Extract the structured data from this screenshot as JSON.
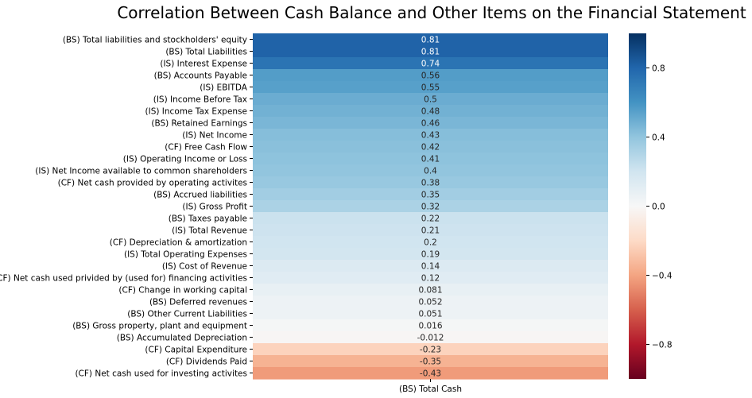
{
  "chart_data": {
    "type": "heatmap",
    "title": "Correlation Between Cash Balance and Other Items on the Financial Statement",
    "columns": [
      "(BS) Total Cash"
    ],
    "rows": [
      {
        "label": "(BS) Total liabilities and stockholders' equity",
        "value": 0.81,
        "text": "0.81"
      },
      {
        "label": "(BS) Total Liabilities",
        "value": 0.81,
        "text": "0.81"
      },
      {
        "label": "(IS) Interest Expense",
        "value": 0.74,
        "text": "0.74"
      },
      {
        "label": "(BS) Accounts Payable",
        "value": 0.56,
        "text": "0.56"
      },
      {
        "label": "(IS) EBITDA",
        "value": 0.55,
        "text": "0.55"
      },
      {
        "label": "(IS) Income Before Tax",
        "value": 0.5,
        "text": "0.5"
      },
      {
        "label": "(IS) Income Tax Expense",
        "value": 0.48,
        "text": "0.48"
      },
      {
        "label": "(BS) Retained Earnings",
        "value": 0.46,
        "text": "0.46"
      },
      {
        "label": "(IS) Net Income",
        "value": 0.43,
        "text": "0.43"
      },
      {
        "label": "(CF) Free Cash Flow",
        "value": 0.42,
        "text": "0.42"
      },
      {
        "label": "(IS) Operating Income or Loss",
        "value": 0.41,
        "text": "0.41"
      },
      {
        "label": "(IS) Net Income available to common shareholders",
        "value": 0.4,
        "text": "0.4"
      },
      {
        "label": "(CF) Net cash provided by operating activites",
        "value": 0.38,
        "text": "0.38"
      },
      {
        "label": "(BS) Accrued liabilities",
        "value": 0.35,
        "text": "0.35"
      },
      {
        "label": "(IS) Gross Profit",
        "value": 0.32,
        "text": "0.32"
      },
      {
        "label": "(BS) Taxes payable",
        "value": 0.22,
        "text": "0.22"
      },
      {
        "label": "(IS) Total Revenue",
        "value": 0.21,
        "text": "0.21"
      },
      {
        "label": "(CF) Depreciation & amortization",
        "value": 0.2,
        "text": "0.2"
      },
      {
        "label": "(IS) Total Operating Expenses",
        "value": 0.19,
        "text": "0.19"
      },
      {
        "label": "(IS) Cost of Revenue",
        "value": 0.14,
        "text": "0.14"
      },
      {
        "label": "(CF) Net cash used privided by (used for) financing activities",
        "value": 0.12,
        "text": "0.12"
      },
      {
        "label": "(CF) Change in working capital",
        "value": 0.081,
        "text": "0.081"
      },
      {
        "label": "(BS) Deferred revenues",
        "value": 0.052,
        "text": "0.052"
      },
      {
        "label": "(BS) Other Current Liabilities",
        "value": 0.051,
        "text": "0.051"
      },
      {
        "label": "(BS) Gross property, plant and equipment",
        "value": 0.016,
        "text": "0.016"
      },
      {
        "label": "(BS) Accumulated Depreciation",
        "value": -0.012,
        "text": "-0.012"
      },
      {
        "label": "(CF) Capital Expenditure",
        "value": -0.23,
        "text": "-0.23"
      },
      {
        "label": "(CF) Dividends Paid",
        "value": -0.35,
        "text": "-0.35"
      },
      {
        "label": "(CF) Net cash used for investing activites",
        "value": -0.43,
        "text": "-0.43"
      }
    ],
    "colorbar": {
      "colormap": "RdBu",
      "range": [
        -1,
        1
      ],
      "ticks": [
        {
          "value": 0.8,
          "label": "0.8"
        },
        {
          "value": 0.4,
          "label": "0.4"
        },
        {
          "value": 0.0,
          "label": "0.0"
        },
        {
          "value": -0.4,
          "label": "−0.4"
        },
        {
          "value": -0.8,
          "label": "−0.8"
        }
      ]
    },
    "annotate": true,
    "grid": false,
    "legend": "colorbar-right"
  }
}
